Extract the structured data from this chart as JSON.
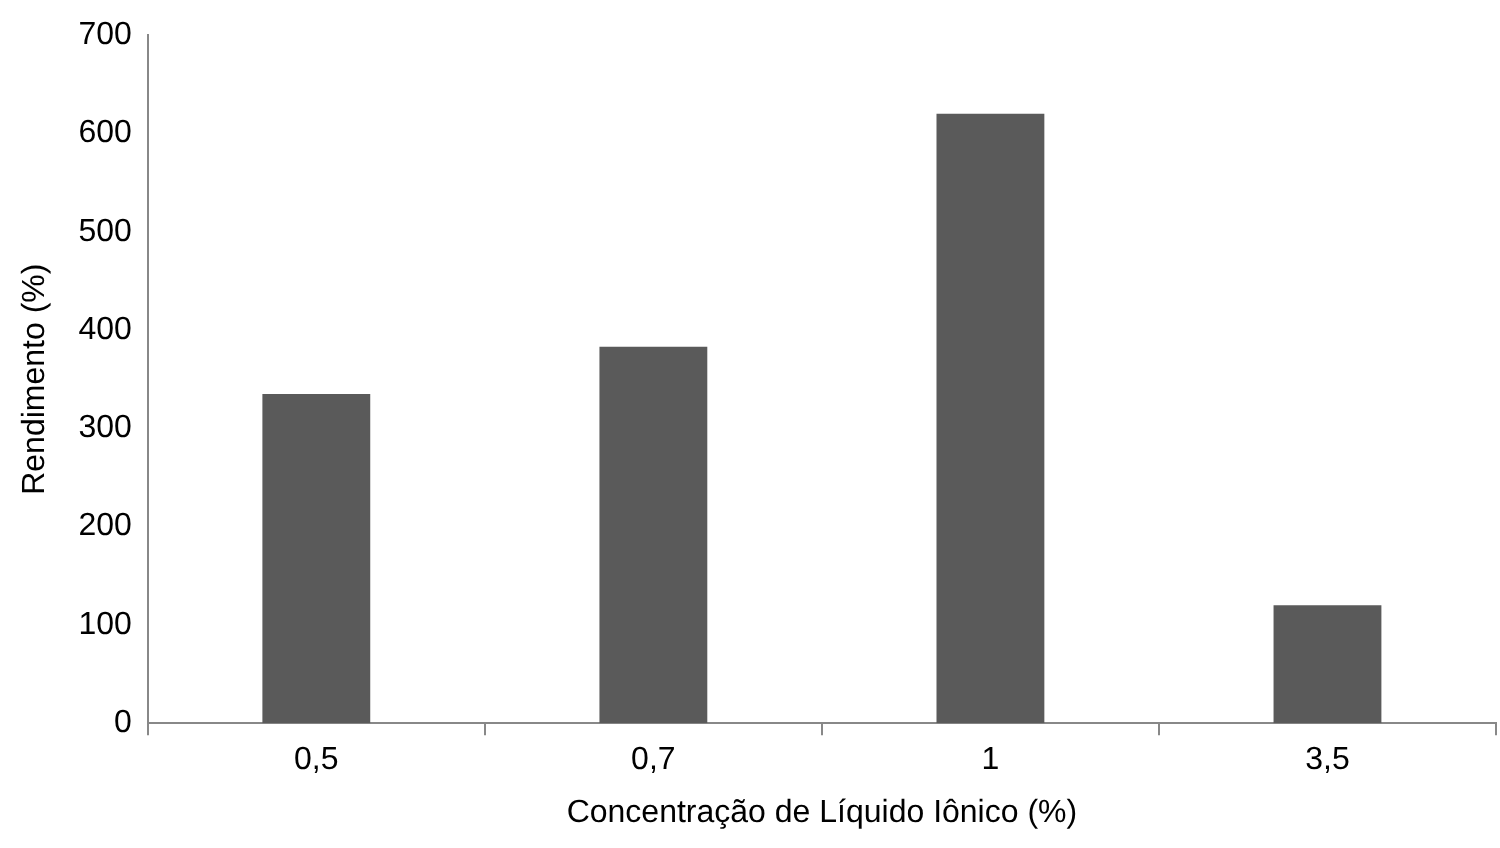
{
  "chart_data": {
    "type": "bar",
    "xlabel": "Concentração de Líquido Iônico (%)",
    "ylabel": "Rendimento (%)",
    "categories": [
      "0,5",
      "0,7",
      "1",
      "3,5"
    ],
    "values": [
      335,
      383,
      620,
      120
    ],
    "color": "#5a5a5a",
    "ylim": [
      0,
      700
    ],
    "yticks": [
      0,
      100,
      200,
      300,
      400,
      500,
      600,
      700
    ],
    "grid": false,
    "legend": false
  }
}
